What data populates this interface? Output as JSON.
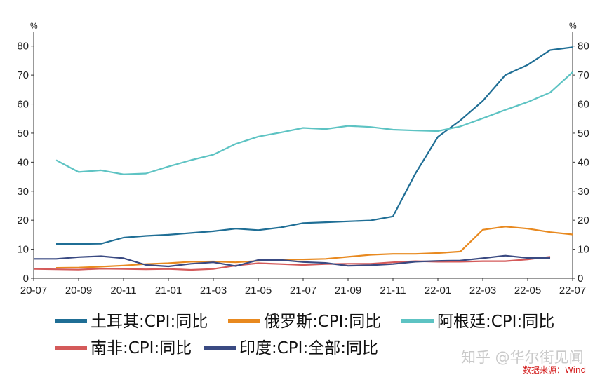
{
  "chart_data": {
    "type": "line",
    "unit_left": "%",
    "unit_right": "%",
    "x": [
      "20-07",
      "20-08",
      "20-09",
      "20-10",
      "20-11",
      "20-12",
      "21-01",
      "21-02",
      "21-03",
      "21-04",
      "21-05",
      "21-06",
      "21-07",
      "21-08",
      "21-09",
      "21-10",
      "21-11",
      "21-12",
      "22-01",
      "22-02",
      "22-03",
      "22-04",
      "22-05",
      "22-06",
      "22-07"
    ],
    "x_tick_labels": [
      "20-07",
      "20-09",
      "20-11",
      "21-01",
      "21-03",
      "21-05",
      "21-07",
      "21-09",
      "21-11",
      "22-01",
      "22-03",
      "22-05",
      "22-07"
    ],
    "ylim": [
      0,
      85
    ],
    "yticks": [
      0,
      10,
      20,
      30,
      40,
      50,
      60,
      70,
      80
    ],
    "grid": false,
    "series": [
      {
        "name": "土耳其:CPI:同比",
        "color": "#1f6e95",
        "values": [
          null,
          11.8,
          11.8,
          11.9,
          14.0,
          14.6,
          15.0,
          15.6,
          16.2,
          17.1,
          16.6,
          17.5,
          19.0,
          19.3,
          19.6,
          19.9,
          21.3,
          36.1,
          48.7,
          54.4,
          61.1,
          70.0,
          73.5,
          78.6,
          79.6
        ]
      },
      {
        "name": "俄罗斯:CPI:同比",
        "color": "#e8891f",
        "values": [
          null,
          3.6,
          3.7,
          4.0,
          4.4,
          4.9,
          5.2,
          5.7,
          5.8,
          5.5,
          6.0,
          6.5,
          6.5,
          6.7,
          7.4,
          8.1,
          8.4,
          8.4,
          8.7,
          9.2,
          16.7,
          17.8,
          17.1,
          15.9,
          15.1
        ]
      },
      {
        "name": "阿根廷:CPI:同比",
        "color": "#5dc3c3",
        "values": [
          null,
          40.7,
          36.6,
          37.2,
          35.8,
          36.1,
          38.5,
          40.7,
          42.6,
          46.3,
          48.8,
          50.2,
          51.8,
          51.4,
          52.5,
          52.1,
          51.2,
          50.9,
          50.7,
          52.3,
          55.1,
          58.0,
          60.7,
          64.0,
          71.0
        ]
      },
      {
        "name": "南非:CPI:同比",
        "color": "#d45a5a",
        "values": [
          3.2,
          3.1,
          3.0,
          3.3,
          3.2,
          3.1,
          3.2,
          2.9,
          3.2,
          4.4,
          5.2,
          4.9,
          4.6,
          4.9,
          5.0,
          5.0,
          5.5,
          5.9,
          5.7,
          5.7,
          5.9,
          5.9,
          6.5,
          7.4,
          null
        ]
      },
      {
        "name": "印度:CPI:全部:同比",
        "color": "#3a4a82",
        "values": [
          6.7,
          6.7,
          7.3,
          7.6,
          6.9,
          4.6,
          4.1,
          5.0,
          5.5,
          4.2,
          6.3,
          6.3,
          5.6,
          5.3,
          4.3,
          4.5,
          4.9,
          5.7,
          6.0,
          6.1,
          6.9,
          7.8,
          7.0,
          7.0,
          null
        ]
      }
    ]
  },
  "watermark": "知乎 @华尔街见闻",
  "source_note": "数据来源：Wind"
}
